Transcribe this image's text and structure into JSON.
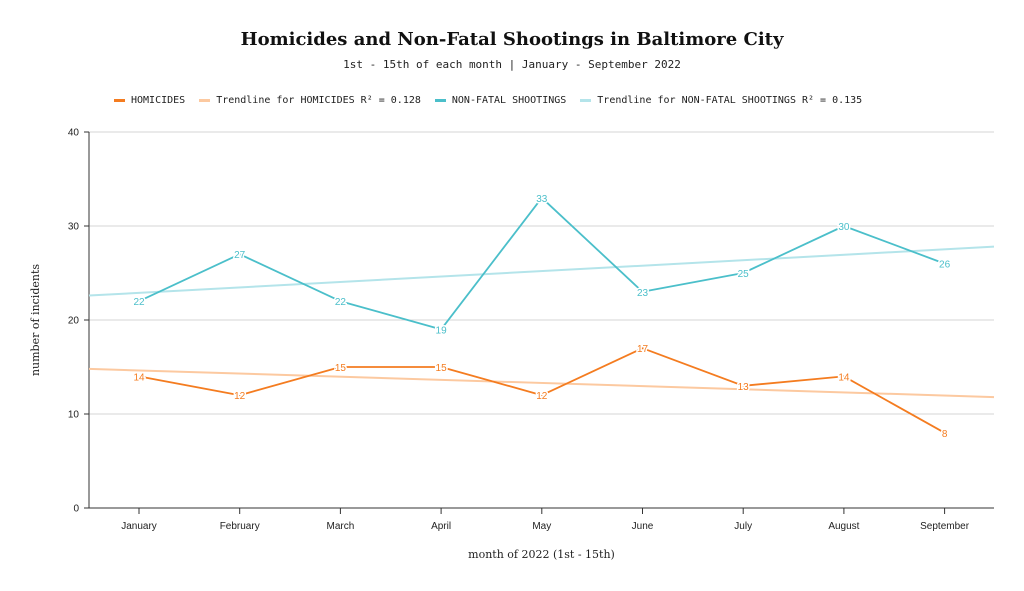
{
  "chart_data": {
    "type": "line",
    "title": "Homicides and Non-Fatal Shootings in Baltimore City",
    "subtitle": "1st - 15th of each month | January - September 2022",
    "xlabel": "month of 2022 (1st - 15th)",
    "ylabel": "number of incidents",
    "categories": [
      "January",
      "February",
      "March",
      "April",
      "May",
      "June",
      "July",
      "August",
      "September"
    ],
    "ylim": [
      0,
      40
    ],
    "yticks": [
      0,
      10,
      20,
      30,
      40
    ],
    "grid": true,
    "legend_position": "top-left",
    "series": [
      {
        "name": "HOMICIDES",
        "color": "#f47c20",
        "values": [
          14,
          12,
          15,
          15,
          12,
          17,
          13,
          14,
          8
        ]
      },
      {
        "name": "NON-FATAL SHOOTINGS",
        "color": "#4bbfca",
        "values": [
          22,
          27,
          22,
          19,
          33,
          23,
          25,
          30,
          26
        ]
      }
    ],
    "trendlines": [
      {
        "name": "Trendline for HOMICIDES R² = 0.128",
        "color": "#fcc9a0",
        "y_start": 14.8,
        "y_end": 11.8
      },
      {
        "name": "Trendline for NON-FATAL SHOOTINGS R² = 0.135",
        "color": "#b4e4ea",
        "y_start": 22.6,
        "y_end": 27.8
      }
    ]
  }
}
